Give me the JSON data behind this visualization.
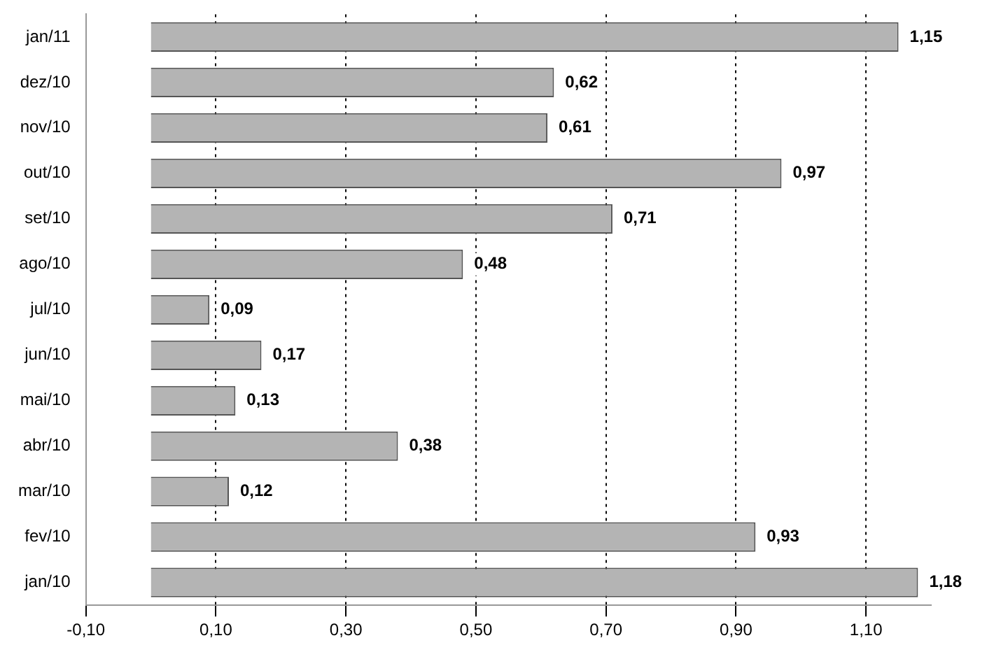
{
  "chart_data": {
    "type": "bar",
    "orientation": "horizontal",
    "categories": [
      "jan/11",
      "dez/10",
      "nov/10",
      "out/10",
      "set/10",
      "ago/10",
      "jul/10",
      "jun/10",
      "mai/10",
      "abr/10",
      "mar/10",
      "fev/10",
      "jan/10"
    ],
    "values": [
      1.15,
      0.62,
      0.61,
      0.97,
      0.71,
      0.48,
      0.09,
      0.17,
      0.13,
      0.38,
      0.12,
      0.93,
      1.18
    ],
    "value_labels": [
      "1,15",
      "0,62",
      "0,61",
      "0,97",
      "0,71",
      "0,48",
      "0,09",
      "0,17",
      "0,13",
      "0,38",
      "0,12",
      "0,93",
      "1,18"
    ],
    "color": "#b4b4b4",
    "xlim": [
      -0.1,
      1.2
    ],
    "xticks": [
      {
        "value": -0.1,
        "label": "-0,10"
      },
      {
        "value": 0.1,
        "label": "0,10"
      },
      {
        "value": 0.3,
        "label": "0,30"
      },
      {
        "value": 0.5,
        "label": "0,50"
      },
      {
        "value": 0.7,
        "label": "0,70"
      },
      {
        "value": 0.9,
        "label": "0,90"
      },
      {
        "value": 1.1,
        "label": "1,10"
      }
    ],
    "grid": "x",
    "legend": false
  }
}
